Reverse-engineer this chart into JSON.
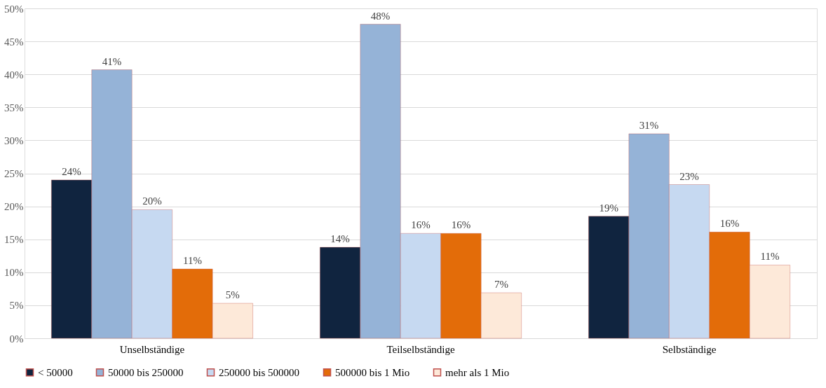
{
  "chart_data": {
    "type": "bar",
    "categories": [
      "Unselbständige",
      "Teilselbständige",
      "Selbständige"
    ],
    "series": [
      {
        "name": "< 50000",
        "color": "#10243f",
        "values": [
          24.0,
          13.8,
          18.5
        ],
        "value_labels": [
          "24%",
          "14%",
          "19%"
        ]
      },
      {
        "name": "50000 bis 250000",
        "color": "#95b3d7",
        "values": [
          40.7,
          47.6,
          31.0
        ],
        "value_labels": [
          "41%",
          "48%",
          "31%"
        ]
      },
      {
        "name": "250000 bis 500000",
        "color": "#c6d9f1",
        "values": [
          19.5,
          15.9,
          23.3
        ],
        "value_labels": [
          "20%",
          "16%",
          "23%"
        ]
      },
      {
        "name": "500000 bis 1 Mio",
        "color": "#e36c09",
        "values": [
          10.5,
          15.9,
          16.1
        ],
        "value_labels": [
          "11%",
          "16%",
          "16%"
        ]
      },
      {
        "name": "mehr als 1 Mio",
        "color": "#fde9d9",
        "values": [
          5.3,
          6.9,
          11.1
        ],
        "value_labels": [
          "5%",
          "7%",
          "11%"
        ]
      }
    ],
    "ylim": [
      0,
      50
    ],
    "yticks": [
      {
        "value": 0,
        "label": "0%"
      },
      {
        "value": 5,
        "label": "5%"
      },
      {
        "value": 10,
        "label": "10%"
      },
      {
        "value": 15,
        "label": "15%"
      },
      {
        "value": 20,
        "label": "20%"
      },
      {
        "value": 25,
        "label": "25%"
      },
      {
        "value": 30,
        "label": "30%"
      },
      {
        "value": 35,
        "label": "35%"
      },
      {
        "value": 40,
        "label": "40%"
      },
      {
        "value": 45,
        "label": "45%"
      },
      {
        "value": 50,
        "label": "50%"
      }
    ],
    "grid": "y",
    "legend": "bottom"
  }
}
